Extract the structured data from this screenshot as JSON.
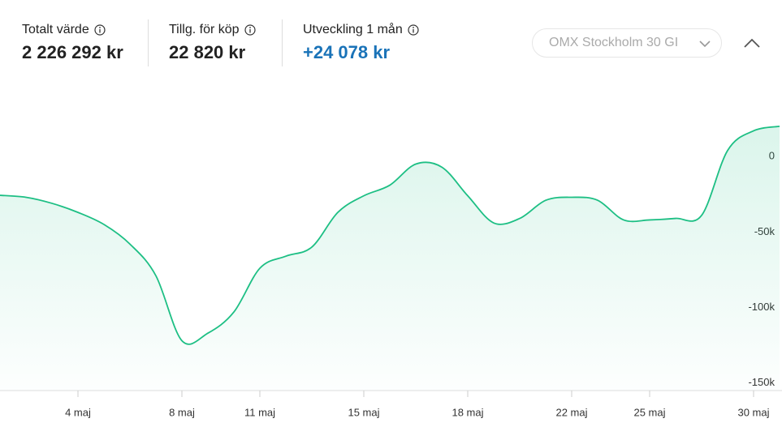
{
  "header": {
    "stats": [
      {
        "label": "Totalt värde",
        "value": "2 226 292 kr"
      },
      {
        "label": "Tillg. för köp",
        "value": "22 820 kr"
      },
      {
        "label": "Utveckling 1 mån",
        "value": "+24 078 kr"
      }
    ],
    "benchmark": "OMX Stockholm 30 GI"
  },
  "chart_data": {
    "type": "area",
    "categories": [
      null,
      null,
      null,
      "4 maj",
      null,
      null,
      null,
      "8 maj",
      null,
      null,
      "11 maj",
      null,
      null,
      null,
      "15 maj",
      null,
      null,
      null,
      "18 maj",
      null,
      null,
      null,
      "22 maj",
      null,
      null,
      "25 maj",
      null,
      null,
      null,
      "30 maj",
      null
    ],
    "series": [
      {
        "name": null,
        "color": "#1dbf84",
        "values": [
          -25700,
          -27000,
          -31000,
          -37000,
          -45000,
          -58000,
          -79000,
          -122000,
          -117000,
          -103000,
          -74000,
          -66000,
          -60000,
          -37000,
          -26000,
          -19000,
          -5000,
          -7000,
          -26000,
          -44000,
          -41000,
          -29000,
          -27000,
          -29000,
          -42000,
          -42000,
          -41000,
          -39000,
          4000,
          17000,
          20000
        ]
      }
    ],
    "ylim": [
      -155000,
      50000
    ],
    "yticks": [
      {
        "value": 0,
        "label": "0"
      },
      {
        "value": -50000,
        "label": "-50k"
      },
      {
        "value": -100000,
        "label": "-100k"
      },
      {
        "value": -150000,
        "label": "-150k"
      }
    ]
  }
}
